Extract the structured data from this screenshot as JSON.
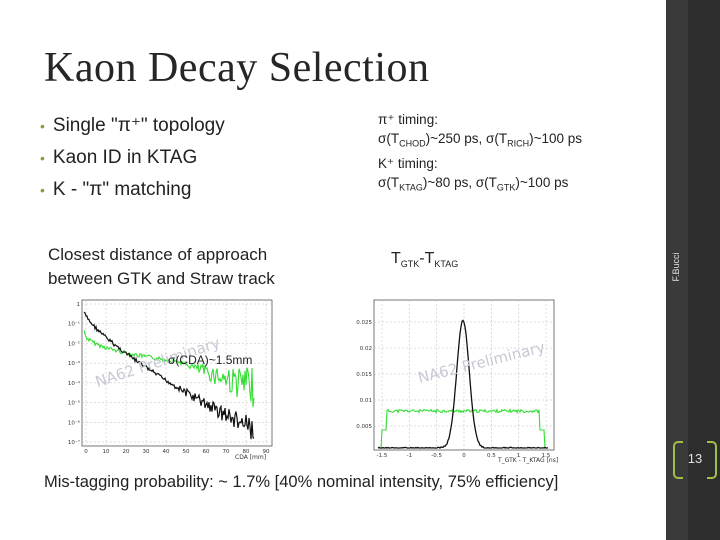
{
  "slide": {
    "title": "Kaon Decay Selection",
    "bullets": [
      "Single \"π⁺\" topology",
      "Kaon ID in KTAG",
      "K - \"π\" matching"
    ],
    "timing": {
      "pi_label": "π⁺ timing:",
      "pi_line": [
        "σ(T",
        "CHOD",
        ")~250 ps, σ(T",
        "RICH",
        ")~100 ps"
      ],
      "k_label": "K⁺ timing:",
      "k_line": [
        "σ(T",
        "KTAG",
        ")~80 ps, σ(T",
        "GTK",
        ")~100 ps"
      ]
    },
    "cda_caption": "Closest distance of approach between GTK and Straw track",
    "tgtk_caption": [
      "T",
      "GTK",
      "-T",
      "KTAG"
    ],
    "footer": "Mis-tagging probability: ~ 1.7% [40% nominal intensity, 75% efficiency]",
    "author": "F.Bucci",
    "page_number": "13"
  },
  "plots": {
    "cda": {
      "watermark": "NA62 Preliminary",
      "annotation": "σ(CDA)~1.5mm",
      "xlabel": "CDA [mm]",
      "x_ticks": [
        "0",
        "10",
        "20",
        "30",
        "40",
        "50",
        "60",
        "70",
        "80",
        "90"
      ],
      "y_ticks": [
        "1",
        "10⁻¹",
        "10⁻²",
        "10⁻³",
        "10⁻⁴",
        "10⁻⁵",
        "10⁻⁶",
        "10⁻⁷"
      ]
    },
    "tgtk": {
      "watermark": "NA62 Preliminary",
      "xlabel": "T_GTK - T_KTAG [ns]",
      "x_ticks": [
        "-1.5",
        "-1",
        "-0.5",
        "0",
        "0.5",
        "1",
        "1.5"
      ],
      "y_ticks": [
        "0.025",
        "0.02",
        "0.015",
        "0.01",
        "0.005"
      ]
    }
  },
  "colors": {
    "accent": "#9fbf4a",
    "sidebar": "#2d2d2d",
    "data_black": "#111111",
    "data_green": "#33dd33"
  }
}
